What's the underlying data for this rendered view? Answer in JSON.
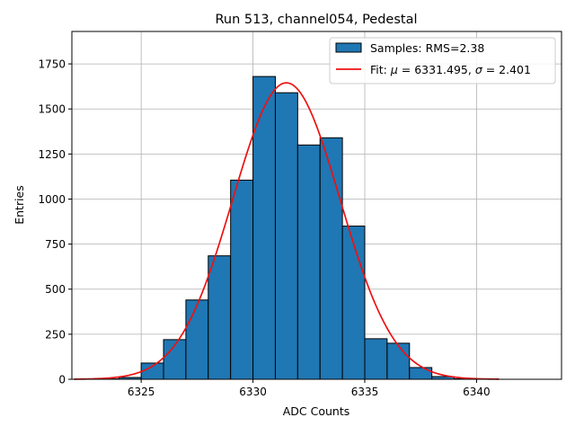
{
  "chart_data": {
    "type": "bar",
    "title": "Run 513, channel054, Pedestal",
    "xlabel": "ADC Counts",
    "ylabel": "Entries",
    "xlim": [
      6321.9,
      6343.8
    ],
    "ylim": [
      0,
      1930
    ],
    "grid": true,
    "legend_position": "top-right",
    "x_ticks": [
      6325,
      6330,
      6335,
      6340
    ],
    "x_tick_labels": [
      "6325",
      "6330",
      "6335",
      "6340"
    ],
    "y_ticks": [
      0,
      250,
      500,
      750,
      1000,
      1250,
      1500,
      1750
    ],
    "y_tick_labels": [
      "0",
      "250",
      "500",
      "750",
      "1000",
      "1250",
      "1500",
      "1750"
    ],
    "bin_width": 1,
    "bin_starts": [
      6322,
      6323,
      6324,
      6325,
      6326,
      6327,
      6328,
      6329,
      6330,
      6331,
      6332,
      6333,
      6334,
      6335,
      6336,
      6337,
      6338,
      6339,
      6340,
      6341,
      6342
    ],
    "values": [
      0,
      2,
      10,
      90,
      220,
      440,
      685,
      1105,
      1680,
      1590,
      1300,
      1340,
      850,
      225,
      200,
      65,
      15,
      3,
      0,
      0,
      0
    ],
    "fit": {
      "mu": 6331.495,
      "sigma": 2.401,
      "amplitude": 1645,
      "x_range": [
        6322,
        6341
      ]
    },
    "legend": [
      {
        "type": "patch",
        "label": "Samples: RMS=2.38"
      },
      {
        "type": "line",
        "label_prefix": "Fit: ",
        "mu_symbol": "μ",
        "mu_text": " = 6331.495, ",
        "sigma_symbol": "σ",
        "sigma_text": " = 2.401"
      }
    ],
    "colors": {
      "bar_fill": "#1f77b4",
      "bar_edge": "#000000",
      "fit_line": "#ee1111",
      "grid": "#b0b0b0"
    }
  }
}
